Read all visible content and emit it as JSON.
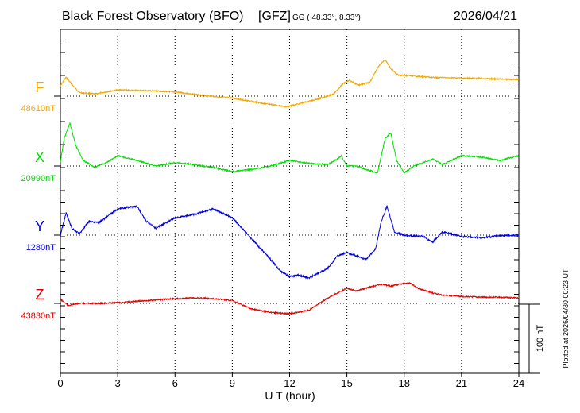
{
  "header": {
    "title": "Black Forest Observatory (BFO)",
    "institute": "[GFZ]",
    "coords": "GG ( 48.33°,   8.33°)",
    "date": "2026/04/21"
  },
  "footer": {
    "plotted_note": "Plotted at 2026/04/30 00:23 UT",
    "scale_label": "100 nT"
  },
  "chart_data": {
    "type": "line",
    "title": "Black Forest Observatory (BFO)",
    "xlabel": "U T (hour)",
    "xlim": [
      0,
      24
    ],
    "xticks": [
      0,
      3,
      6,
      9,
      12,
      15,
      18,
      21,
      24
    ],
    "scale_bar_nT": 100,
    "grid": true,
    "series": [
      {
        "name": "F",
        "baseline_label": "48610nT",
        "baseline_nT": 48610,
        "color": "#f0a800",
        "x": [
          0,
          0.3,
          0.6,
          1.0,
          1.8,
          3,
          4.5,
          6,
          7.5,
          9,
          10.5,
          11.5,
          11.8,
          12.5,
          13.5,
          14.3,
          14.8,
          15.1,
          15.6,
          16.2,
          16.7,
          17.0,
          17.3,
          17.7,
          18.0,
          18.5,
          19.5,
          21,
          22.5,
          24
        ],
        "values": [
          48625,
          48637,
          48627,
          48615,
          48613,
          48619,
          48618,
          48616,
          48611,
          48607,
          48600,
          48596,
          48594,
          48599,
          48606,
          48613,
          48628,
          48633,
          48626,
          48630,
          48655,
          48663,
          48650,
          48640,
          48640,
          48639,
          48637,
          48636,
          48635,
          48634
        ]
      },
      {
        "name": "X",
        "baseline_label": "20990nT",
        "baseline_nT": 20990,
        "color": "#00dd00",
        "x": [
          0,
          0.2,
          0.5,
          0.8,
          1.2,
          1.8,
          2.5,
          3,
          4,
          5,
          6,
          7,
          8,
          9,
          10,
          11,
          12,
          13,
          14,
          14.5,
          14.7,
          15.0,
          15.5,
          16.0,
          16.6,
          17.0,
          17.3,
          17.6,
          18.0,
          18.5,
          19,
          19.5,
          20,
          21,
          22,
          23,
          24
        ],
        "values": [
          20995,
          21030,
          21052,
          21020,
          20998,
          20988,
          20996,
          21005,
          20998,
          20990,
          20995,
          20992,
          20988,
          20982,
          20985,
          20990,
          20998,
          20994,
          20992,
          21000,
          21005,
          20990,
          20990,
          20985,
          20980,
          21030,
          21038,
          20998,
          20980,
          20990,
          20995,
          21000,
          20992,
          21005,
          21003,
          20998,
          21005
        ]
      },
      {
        "name": "Y",
        "baseline_label": "1280nT",
        "baseline_nT": 1280,
        "color": "#0000dd",
        "x": [
          0,
          0.3,
          0.6,
          1.0,
          1.5,
          2,
          3,
          4,
          4.5,
          5,
          6,
          7,
          8,
          9,
          10,
          11,
          11.5,
          12,
          12.5,
          13,
          14,
          14.5,
          15,
          15.5,
          16,
          16.5,
          16.8,
          17.1,
          17.5,
          18,
          19,
          19.5,
          20,
          21,
          22,
          23,
          24
        ],
        "values": [
          1280,
          1312,
          1290,
          1282,
          1300,
          1298,
          1318,
          1322,
          1300,
          1290,
          1305,
          1310,
          1318,
          1305,
          1275,
          1245,
          1228,
          1220,
          1222,
          1218,
          1232,
          1250,
          1255,
          1250,
          1245,
          1260,
          1300,
          1322,
          1284,
          1280,
          1278,
          1270,
          1285,
          1278,
          1276,
          1279,
          1280
        ]
      },
      {
        "name": "Z",
        "baseline_label": "43830nT",
        "baseline_nT": 43830,
        "color": "#dd0000",
        "x": [
          0,
          0.4,
          1.0,
          2,
          3,
          4,
          5,
          6,
          7,
          8,
          9,
          10,
          11,
          12,
          13,
          14,
          14.5,
          15,
          15.5,
          16,
          16.8,
          17.3,
          17.8,
          18.3,
          18.7,
          19.5,
          20,
          21,
          22,
          23,
          24
        ],
        "values": [
          43836,
          43827,
          43830,
          43830,
          43831,
          43833,
          43835,
          43837,
          43838,
          43837,
          43834,
          43822,
          43817,
          43815,
          43820,
          43838,
          43845,
          43852,
          43848,
          43852,
          43858,
          43855,
          43858,
          43860,
          43852,
          43845,
          43842,
          43840,
          43839,
          43839,
          43838
        ]
      }
    ]
  }
}
